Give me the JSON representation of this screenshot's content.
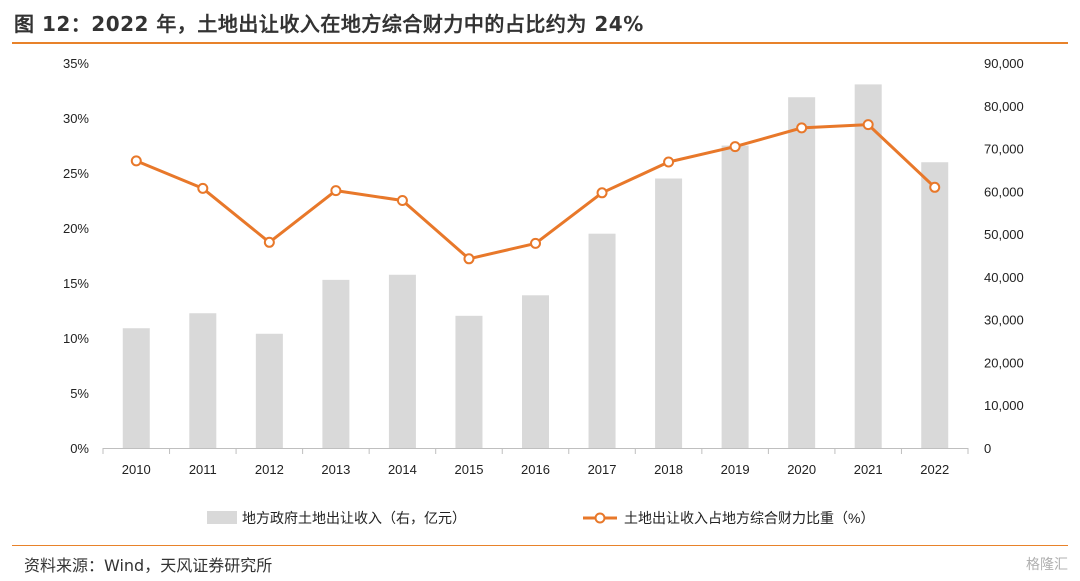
{
  "figure": {
    "title": "图 12：2022 年，土地出让收入在地方综合财力中的占比约为 24%",
    "source": "资料来源：Wind，天风证券研究所",
    "watermark": "格隆汇"
  },
  "colors": {
    "bar": "#d9d9d9",
    "line": "#e8782a",
    "accent_rule": "#e8822a",
    "axis": "#bfbfbf"
  },
  "chart_data": {
    "type": "bar",
    "categories": [
      "2010",
      "2011",
      "2012",
      "2013",
      "2014",
      "2015",
      "2016",
      "2017",
      "2018",
      "2019",
      "2020",
      "2021",
      "2022"
    ],
    "series": [
      {
        "name": "地方政府土地出让收入（右，亿元）",
        "kind": "bar",
        "axis": "right",
        "values": [
          28000,
          31500,
          26700,
          39300,
          40500,
          30900,
          35700,
          50100,
          63000,
          70700,
          82000,
          85000,
          66800
        ]
      },
      {
        "name": "土地出让收入占地方综合财力比重（%）",
        "kind": "line",
        "axis": "left",
        "values": [
          26.1,
          23.6,
          18.7,
          23.4,
          22.5,
          17.2,
          18.6,
          23.2,
          26.0,
          27.4,
          29.1,
          29.4,
          23.7
        ]
      }
    ],
    "left_axis": {
      "ylim": [
        0,
        35
      ],
      "ticks": [
        "0%",
        "5%",
        "10%",
        "15%",
        "20%",
        "25%",
        "30%",
        "35%"
      ]
    },
    "right_axis": {
      "ylim": [
        0,
        90000
      ],
      "ticks": [
        "0",
        "10,000",
        "20,000",
        "30,000",
        "40,000",
        "50,000",
        "60,000",
        "70,000",
        "80,000",
        "90,000"
      ]
    },
    "grid": false,
    "legend_position": "bottom"
  }
}
